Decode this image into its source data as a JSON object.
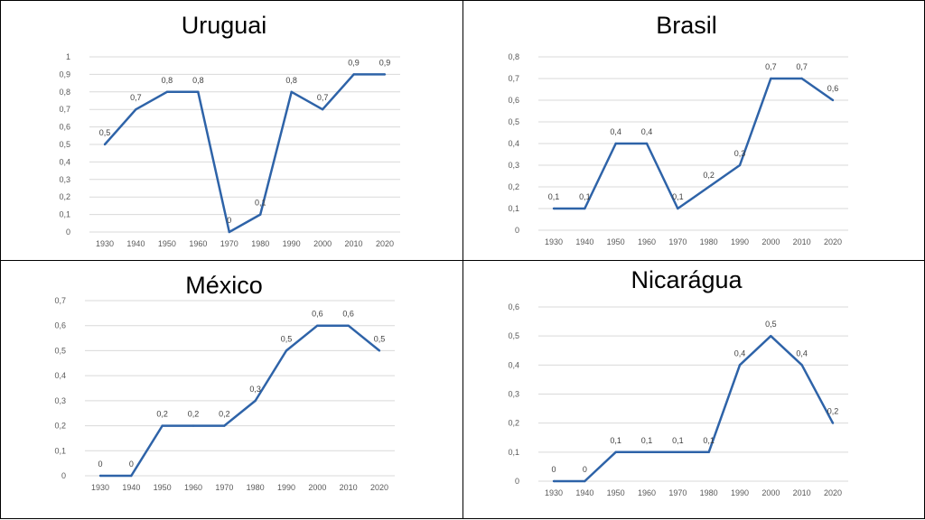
{
  "series_color": "#2e63a8",
  "chart_data": [
    {
      "type": "line",
      "title": "Uruguai",
      "categories": [
        "1930",
        "1940",
        "1950",
        "1960",
        "1970",
        "1980",
        "1990",
        "2000",
        "2010",
        "2020"
      ],
      "values": [
        0.5,
        0.7,
        0.8,
        0.8,
        0,
        0.1,
        0.8,
        0.7,
        0.9,
        0.9
      ],
      "data_labels": [
        "0,5",
        "0,7",
        "0,8",
        "0,8",
        "0",
        "0,1",
        "0,8",
        "0,7",
        "0,9",
        "0,9"
      ],
      "yticks": [
        0,
        0.1,
        0.2,
        0.3,
        0.4,
        0.5,
        0.6,
        0.7,
        0.8,
        0.9,
        1
      ],
      "ytick_labels": [
        "0",
        "0,1",
        "0,2",
        "0,3",
        "0,4",
        "0,5",
        "0,6",
        "0,7",
        "0,8",
        "0,9",
        "1"
      ],
      "ylim": [
        0,
        1
      ],
      "grid": true
    },
    {
      "type": "line",
      "title": "Brasil",
      "categories": [
        "1930",
        "1940",
        "1950",
        "1960",
        "1970",
        "1980",
        "1990",
        "2000",
        "2010",
        "2020"
      ],
      "values": [
        0.1,
        0.1,
        0.4,
        0.4,
        0.1,
        0.2,
        0.3,
        0.7,
        0.7,
        0.6
      ],
      "data_labels": [
        "0,1",
        "0,1",
        "0,4",
        "0,4",
        "0,1",
        "0,2",
        "0,3",
        "0,7",
        "0,7",
        "0,6"
      ],
      "yticks": [
        0,
        0.1,
        0.2,
        0.3,
        0.4,
        0.5,
        0.6,
        0.7,
        0.8
      ],
      "ytick_labels": [
        "0",
        "0,1",
        "0,2",
        "0,3",
        "0,4",
        "0,5",
        "0,6",
        "0,7",
        "0,8"
      ],
      "ylim": [
        0,
        0.8
      ],
      "grid": true
    },
    {
      "type": "line",
      "title": "México",
      "categories": [
        "1930",
        "1940",
        "1950",
        "1960",
        "1970",
        "1980",
        "1990",
        "2000",
        "2010",
        "2020"
      ],
      "values": [
        0,
        0,
        0.2,
        0.2,
        0.2,
        0.3,
        0.5,
        0.6,
        0.6,
        0.5
      ],
      "data_labels": [
        "0",
        "0",
        "0,2",
        "0,2",
        "0,2",
        "0,3",
        "0,5",
        "0,6",
        "0,6",
        "0,5"
      ],
      "yticks": [
        0,
        0.1,
        0.2,
        0.3,
        0.4,
        0.5,
        0.6,
        0.7
      ],
      "ytick_labels": [
        "0",
        "0,1",
        "0,2",
        "0,3",
        "0,4",
        "0,5",
        "0,6",
        "0,7"
      ],
      "ylim": [
        0,
        0.7
      ],
      "grid": true
    },
    {
      "type": "line",
      "title": "Nicarágua",
      "categories": [
        "1930",
        "1940",
        "1950",
        "1960",
        "1970",
        "1980",
        "1990",
        "2000",
        "2010",
        "2020"
      ],
      "values": [
        0,
        0,
        0.1,
        0.1,
        0.1,
        0.1,
        0.4,
        0.5,
        0.4,
        0.2
      ],
      "data_labels": [
        "0",
        "0",
        "0,1",
        "0,1",
        "0,1",
        "0,1",
        "0,4",
        "0,5",
        "0,4",
        "0,2"
      ],
      "yticks": [
        0,
        0.1,
        0.2,
        0.3,
        0.4,
        0.5,
        0.6
      ],
      "ytick_labels": [
        "0",
        "0,1",
        "0,2",
        "0,3",
        "0,4",
        "0,5",
        "0,6"
      ],
      "ylim": [
        0,
        0.6
      ],
      "grid": true
    }
  ]
}
